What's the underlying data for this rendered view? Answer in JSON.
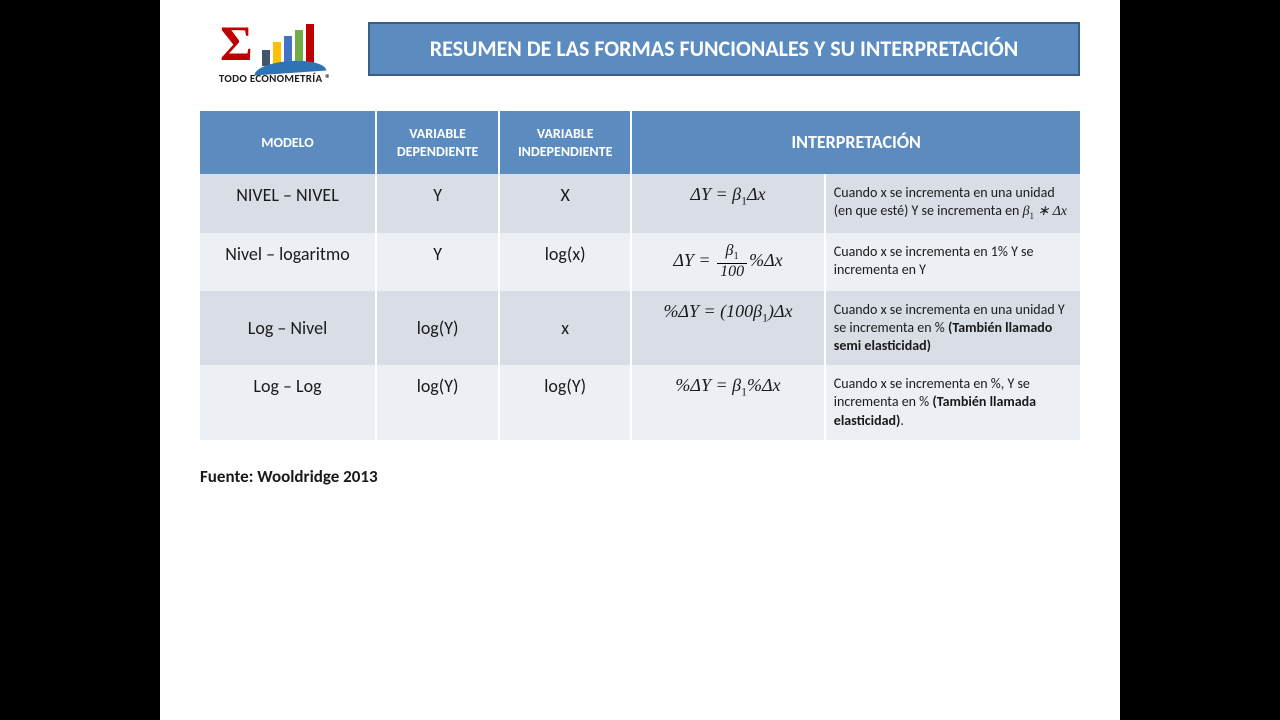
{
  "logo": {
    "text": "TODO ECONOMETRÍA  ®",
    "bar_colors": [
      "#44546a",
      "#ffc000",
      "#4472c4",
      "#70ad47",
      "#c00000"
    ],
    "sigma_color": "#c00000",
    "swoosh_color": "#2e74b5"
  },
  "title": "RESUMEN DE LAS FORMAS FUNCIONALES Y SU INTERPRETACIÓN",
  "colors": {
    "header_bg": "#5b8bbf",
    "header_border": "#3a5f86",
    "row_a": "#d9dde6",
    "row_b": "#eceff4",
    "page_bg": "#ffffff",
    "outer_bg": "#000000"
  },
  "table": {
    "type": "table",
    "columns": [
      "MODELO",
      "VARIABLE DEPENDIENTE",
      "VARIABLE INDEPENDIENTE",
      "INTERPRETACIÓN"
    ],
    "col_widths_pct": [
      20,
      14,
      15,
      22,
      29
    ],
    "rows": [
      {
        "modelo": "NIVEL – NIVEL",
        "dep": "Y",
        "indep": "X",
        "formula_html": "Δ<i>Y</i> = <i>β</i><span class='sub'>1</span>Δ<i>x</i>",
        "desc_html": "Cuando x se incrementa en una unidad (en que esté) Y se incrementa en <span class='mini'>β<span class='sub'>1</span> ∗ Δx</span>"
      },
      {
        "modelo": "Nivel – logaritmo",
        "dep": "Y",
        "indep": "log(x)",
        "formula_html": "Δ<i>Y</i> = <span class='frac'><span class='num'>β<span class='sub'>1</span></span><span class='den'>100</span></span>%Δ<i>x</i>",
        "desc_html": "Cuando x se incrementa en 1% Y se incrementa en Y"
      },
      {
        "modelo": "Log – Nivel",
        "dep": "log(Y)",
        "indep": "x",
        "formula_html": "%Δ<i>Y</i> = (100<i>β</i><span class='sub'>1</span>)Δ<i>x</i>",
        "desc_html": "Cuando x se incrementa en una unidad Y se incrementa en % <b>(También llamado semi elasticidad)</b>"
      },
      {
        "modelo": "Log – Log",
        "dep": "log(Y)",
        "indep": "log(Y)",
        "formula_html": "%Δ<i>Y</i> = <i>β</i><span class='sub'>1</span>%Δ<i>x</i>",
        "desc_html": "Cuando x se incrementa en %, Y se incrementa en % <b>(También llamada elasticidad)</b>."
      }
    ]
  },
  "source": "Fuente: Wooldridge  2013"
}
